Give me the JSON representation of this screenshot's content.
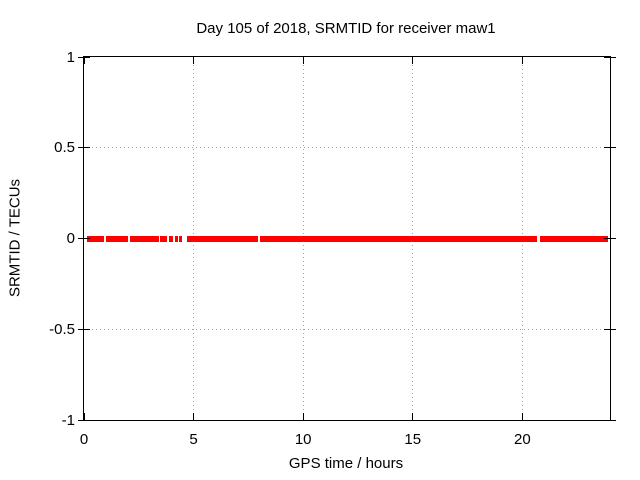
{
  "chart_data": {
    "type": "line",
    "title": "Day 105 of 2018, SRMTID for receiver maw1",
    "xlabel": "GPS time / hours",
    "ylabel": "SRMTID / TECUs",
    "xlim": [
      0,
      24
    ],
    "ylim": [
      -1,
      1
    ],
    "grid": true,
    "legend": "none",
    "xticks": [
      {
        "value": 0,
        "label": "0"
      },
      {
        "value": 5,
        "label": "5"
      },
      {
        "value": 10,
        "label": "10"
      },
      {
        "value": 15,
        "label": "15"
      },
      {
        "value": 20,
        "label": "20"
      }
    ],
    "yticks": [
      {
        "value": 1,
        "label": "1"
      },
      {
        "value": 0.5,
        "label": "0.5"
      },
      {
        "value": 0,
        "label": "0"
      },
      {
        "value": -0.5,
        "label": "-0.5"
      },
      {
        "value": -1,
        "label": "-1"
      }
    ],
    "series": [
      {
        "name": "SRMTID",
        "y_value": 0,
        "color": "#ff0000",
        "segments_hours": [
          [
            0.14,
            0.92
          ],
          [
            1.02,
            2.03
          ],
          [
            2.11,
            3.41
          ],
          [
            3.49,
            3.81
          ],
          [
            3.89,
            4.07
          ],
          [
            4.14,
            4.27
          ],
          [
            4.34,
            4.49
          ],
          [
            4.71,
            7.92
          ],
          [
            8.03,
            20.69
          ],
          [
            20.8,
            23.89
          ]
        ]
      }
    ],
    "colors": {
      "line": "#ff0000",
      "grid": "#a6a6a6",
      "axis": "#000000",
      "background": "#ffffff",
      "text": "#000000"
    }
  }
}
